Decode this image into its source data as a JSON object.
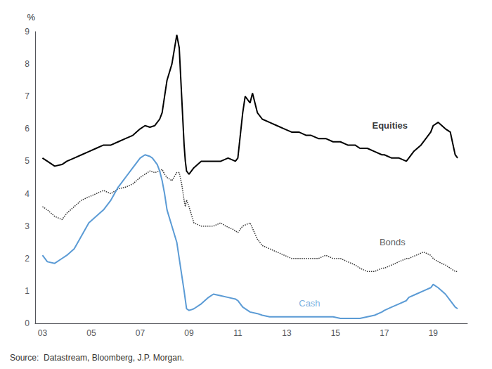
{
  "chart_data": {
    "type": "line",
    "ylabel": "%",
    "source": "Source:  Datastream, Bloomberg, J.P. Morgan.",
    "grid": false,
    "legend": false,
    "xlim": [
      2002.7,
      2020.4
    ],
    "xticks": [
      {
        "value": 2003,
        "label": "03"
      },
      {
        "value": 2005,
        "label": "05"
      },
      {
        "value": 2007,
        "label": "07"
      },
      {
        "value": 2009,
        "label": "09"
      },
      {
        "value": 2011,
        "label": "11"
      },
      {
        "value": 2013,
        "label": "13"
      },
      {
        "value": 2015,
        "label": "15"
      },
      {
        "value": 2017,
        "label": "17"
      },
      {
        "value": 2019,
        "label": "19"
      }
    ],
    "ylim": [
      0,
      9
    ],
    "yticks": [
      0,
      1,
      2,
      3,
      4,
      5,
      6,
      7,
      8,
      9
    ],
    "series": [
      {
        "name": "Equities",
        "color": "#000000",
        "line_style": "solid",
        "x": [
          2003.0,
          2003.2,
          2003.5,
          2003.8,
          2004.0,
          2004.3,
          2004.6,
          2004.9,
          2005.2,
          2005.5,
          2005.8,
          2006.1,
          2006.4,
          2006.7,
          2007.0,
          2007.2,
          2007.4,
          2007.6,
          2007.8,
          2007.9,
          2008.0,
          2008.1,
          2008.3,
          2008.5,
          2008.6,
          2008.7,
          2008.8,
          2008.85,
          2008.9,
          2009.0,
          2009.2,
          2009.5,
          2009.8,
          2010.0,
          2010.3,
          2010.6,
          2010.9,
          2011.0,
          2011.2,
          2011.3,
          2011.5,
          2011.6,
          2011.8,
          2012.0,
          2012.3,
          2012.6,
          2012.9,
          2013.2,
          2013.5,
          2013.8,
          2014.0,
          2014.3,
          2014.6,
          2014.9,
          2015.2,
          2015.5,
          2015.8,
          2016.0,
          2016.3,
          2016.6,
          2016.9,
          2017.0,
          2017.3,
          2017.6,
          2017.9,
          2018.0,
          2018.2,
          2018.5,
          2018.7,
          2018.9,
          2019.0,
          2019.2,
          2019.5,
          2019.7,
          2019.9,
          2020.0
        ],
        "values": [
          5.1,
          5.0,
          4.85,
          4.9,
          5.0,
          5.1,
          5.2,
          5.3,
          5.4,
          5.5,
          5.5,
          5.6,
          5.7,
          5.8,
          6.0,
          6.1,
          6.05,
          6.1,
          6.3,
          6.5,
          7.0,
          7.5,
          8.0,
          8.9,
          8.5,
          7.0,
          5.5,
          5.0,
          4.7,
          4.6,
          4.8,
          5.0,
          5.0,
          5.0,
          5.0,
          5.1,
          5.0,
          5.1,
          6.5,
          7.0,
          6.8,
          7.1,
          6.5,
          6.3,
          6.2,
          6.1,
          6.0,
          5.9,
          5.9,
          5.8,
          5.8,
          5.7,
          5.7,
          5.6,
          5.6,
          5.5,
          5.5,
          5.4,
          5.4,
          5.3,
          5.2,
          5.2,
          5.1,
          5.1,
          5.0,
          5.1,
          5.3,
          5.5,
          5.7,
          5.9,
          6.1,
          6.2,
          6.0,
          5.9,
          5.2,
          5.1
        ]
      },
      {
        "name": "Bonds",
        "color": "#333333",
        "line_style": "dotted",
        "x": [
          2003.0,
          2003.2,
          2003.5,
          2003.8,
          2004.0,
          2004.3,
          2004.6,
          2004.9,
          2005.2,
          2005.5,
          2005.8,
          2006.1,
          2006.4,
          2006.7,
          2007.0,
          2007.2,
          2007.4,
          2007.6,
          2007.8,
          2007.9,
          2008.0,
          2008.1,
          2008.3,
          2008.5,
          2008.6,
          2008.7,
          2008.8,
          2008.85,
          2008.9,
          2009.0,
          2009.2,
          2009.5,
          2009.8,
          2010.0,
          2010.3,
          2010.5,
          2010.8,
          2011.0,
          2011.2,
          2011.5,
          2011.8,
          2012.0,
          2012.3,
          2012.6,
          2012.9,
          2013.2,
          2013.5,
          2013.8,
          2014.0,
          2014.3,
          2014.6,
          2014.9,
          2015.2,
          2015.5,
          2015.8,
          2016.0,
          2016.3,
          2016.6,
          2016.9,
          2017.0,
          2017.3,
          2017.6,
          2017.9,
          2018.0,
          2018.3,
          2018.6,
          2018.9,
          2019.0,
          2019.2,
          2019.5,
          2019.7,
          2019.9,
          2020.0
        ],
        "values": [
          3.6,
          3.5,
          3.3,
          3.2,
          3.4,
          3.6,
          3.8,
          3.9,
          4.0,
          4.1,
          4.0,
          4.15,
          4.2,
          4.3,
          4.5,
          4.6,
          4.7,
          4.65,
          4.7,
          4.75,
          4.6,
          4.5,
          4.4,
          4.65,
          4.65,
          4.3,
          3.8,
          3.6,
          3.8,
          3.6,
          3.1,
          3.0,
          3.0,
          3.0,
          3.1,
          3.0,
          2.9,
          2.8,
          3.0,
          3.1,
          2.6,
          2.4,
          2.3,
          2.2,
          2.1,
          2.0,
          2.0,
          2.0,
          2.0,
          2.0,
          2.1,
          2.0,
          2.0,
          1.9,
          1.8,
          1.7,
          1.6,
          1.6,
          1.7,
          1.7,
          1.8,
          1.9,
          2.0,
          2.0,
          2.1,
          2.2,
          2.1,
          2.0,
          1.9,
          1.8,
          1.7,
          1.6,
          1.6
        ]
      },
      {
        "name": "Cash",
        "color": "#5b9bd5",
        "line_style": "solid",
        "x": [
          2003.0,
          2003.2,
          2003.5,
          2003.8,
          2004.0,
          2004.3,
          2004.6,
          2004.9,
          2005.2,
          2005.5,
          2005.8,
          2006.1,
          2006.4,
          2006.7,
          2007.0,
          2007.2,
          2007.4,
          2007.5,
          2007.6,
          2007.7,
          2007.8,
          2007.9,
          2008.0,
          2008.1,
          2008.3,
          2008.5,
          2008.6,
          2008.7,
          2008.8,
          2008.9,
          2009.0,
          2009.1,
          2009.2,
          2009.5,
          2009.8,
          2010.0,
          2010.3,
          2010.6,
          2010.9,
          2011.0,
          2011.2,
          2011.5,
          2011.8,
          2012.0,
          2012.3,
          2012.6,
          2012.9,
          2013.2,
          2013.5,
          2013.8,
          2014.0,
          2014.3,
          2014.6,
          2014.9,
          2015.2,
          2015.5,
          2015.8,
          2016.0,
          2016.3,
          2016.6,
          2016.9,
          2017.0,
          2017.3,
          2017.6,
          2017.9,
          2018.0,
          2018.3,
          2018.6,
          2018.9,
          2019.0,
          2019.2,
          2019.5,
          2019.7,
          2019.9,
          2020.0
        ],
        "values": [
          2.1,
          1.9,
          1.85,
          2.0,
          2.1,
          2.3,
          2.7,
          3.1,
          3.3,
          3.5,
          3.8,
          4.2,
          4.5,
          4.8,
          5.1,
          5.2,
          5.15,
          5.1,
          5.0,
          4.9,
          4.7,
          4.4,
          4.0,
          3.5,
          3.0,
          2.5,
          2.0,
          1.5,
          1.0,
          0.45,
          0.4,
          0.42,
          0.45,
          0.6,
          0.8,
          0.9,
          0.85,
          0.8,
          0.75,
          0.7,
          0.5,
          0.35,
          0.3,
          0.25,
          0.2,
          0.2,
          0.2,
          0.2,
          0.2,
          0.2,
          0.2,
          0.2,
          0.2,
          0.2,
          0.15,
          0.15,
          0.15,
          0.15,
          0.2,
          0.25,
          0.35,
          0.4,
          0.5,
          0.6,
          0.7,
          0.8,
          0.9,
          1.0,
          1.1,
          1.2,
          1.1,
          0.9,
          0.7,
          0.5,
          0.45
        ]
      }
    ],
    "annotations": [
      {
        "text": "Equities",
        "x": 2016.5,
        "y": 6.1
      },
      {
        "text": "Bonds",
        "x": 2016.8,
        "y": 2.5
      },
      {
        "text": "Cash",
        "x": 2013.5,
        "y": 0.62
      }
    ]
  }
}
